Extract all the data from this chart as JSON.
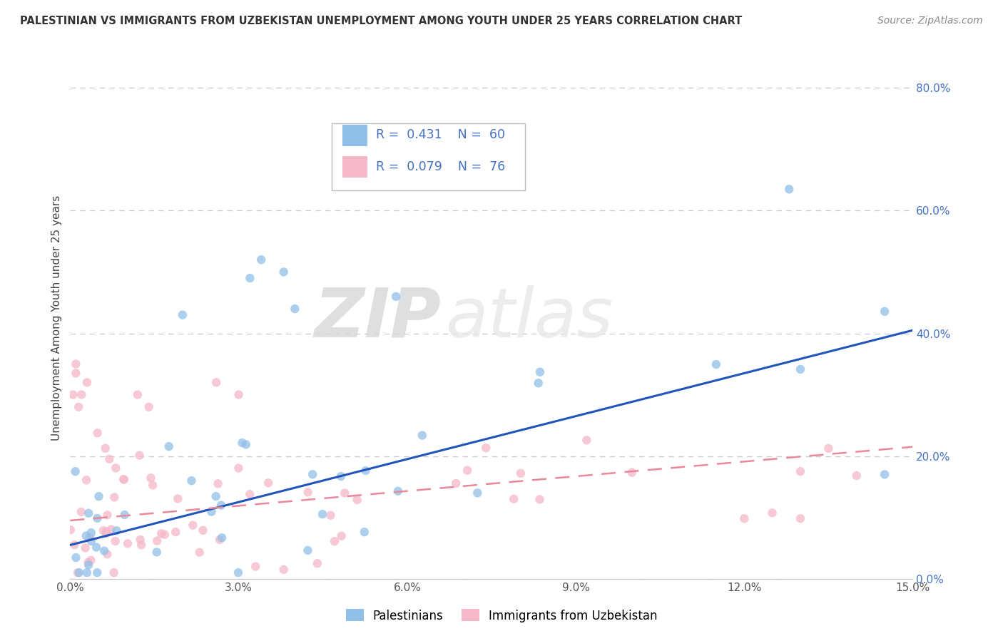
{
  "title": "PALESTINIAN VS IMMIGRANTS FROM UZBEKISTAN UNEMPLOYMENT AMONG YOUTH UNDER 25 YEARS CORRELATION CHART",
  "source": "Source: ZipAtlas.com",
  "ylabel": "Unemployment Among Youth under 25 years",
  "xlim": [
    0.0,
    0.15
  ],
  "ylim": [
    0.0,
    0.85
  ],
  "ytick_vals": [
    0.0,
    0.2,
    0.4,
    0.6,
    0.8
  ],
  "ytick_labels": [
    "0.0%",
    "20.0%",
    "40.0%",
    "60.0%",
    "80.0%"
  ],
  "xtick_vals": [
    0.0,
    0.03,
    0.06,
    0.09,
    0.12,
    0.15
  ],
  "xtick_labels": [
    "0.0%",
    "3.0%",
    "6.0%",
    "9.0%",
    "12.0%",
    "15.0%"
  ],
  "palestinians_color": "#90c0e8",
  "uzbekistan_color": "#f5b8c8",
  "trend_blue_color": "#2255bb",
  "trend_pink_color": "#e88899",
  "R_palestinians": 0.431,
  "N_palestinians": 60,
  "R_uzbekistan": 0.079,
  "N_uzbekistan": 76,
  "watermark_zip": "ZIP",
  "watermark_atlas": "atlas",
  "trend_blue_y0": 0.055,
  "trend_blue_y1": 0.405,
  "trend_pink_y0": 0.095,
  "trend_pink_y1": 0.215,
  "legend_label_pal": "Palestinians",
  "legend_label_uzb": "Immigrants from Uzbekistan",
  "grid_color": "#c8c8d0",
  "axis_color": "#cccccc"
}
